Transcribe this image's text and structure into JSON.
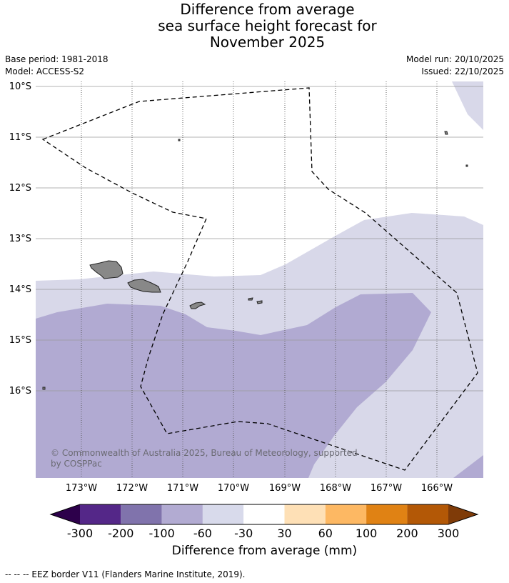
{
  "title": {
    "line1": "Difference from average",
    "line2": "sea surface height forecast for",
    "line3": "November 2025"
  },
  "meta": {
    "base_period": "Base period: 1981-2018",
    "model": "Model: ACCESS-S2",
    "model_run": "Model run: 20/10/2025",
    "issued": "Issued: 22/10/2025"
  },
  "map": {
    "lat_labels": [
      "10°S",
      "11°S",
      "12°S",
      "13°S",
      "14°S",
      "15°S",
      "16°S"
    ],
    "lon_labels": [
      "173°W",
      "172°W",
      "171°W",
      "170°W",
      "169°W",
      "168°W",
      "167°W",
      "166°W"
    ],
    "copyright": "© Commonwealth of Australia 2025, Bureau of Meteorology, supported",
    "copyright2": "by COSPPac",
    "band_colors": {
      "minus60_to_minus30": "#d8d8e9",
      "minus100_to_minus60": "#b1aad2",
      "land": "#888888",
      "ocean_neutral": "#ffffff"
    }
  },
  "colorbar": {
    "title": "Difference from average (mm)",
    "tick_labels": [
      "-300",
      "-200",
      "-100",
      "-60",
      "-30",
      "30",
      "60",
      "100",
      "200",
      "300"
    ],
    "colors": [
      "#2d004b",
      "#542788",
      "#8073ac",
      "#b2abd2",
      "#d8daeb",
      "#ffffff",
      "#fee0b6",
      "#fdb863",
      "#e08214",
      "#b35806",
      "#7f3b08"
    ]
  },
  "footer": {
    "legend": "--  --  -- EEZ border V11 (Flanders Marine Institute, 2019)."
  }
}
